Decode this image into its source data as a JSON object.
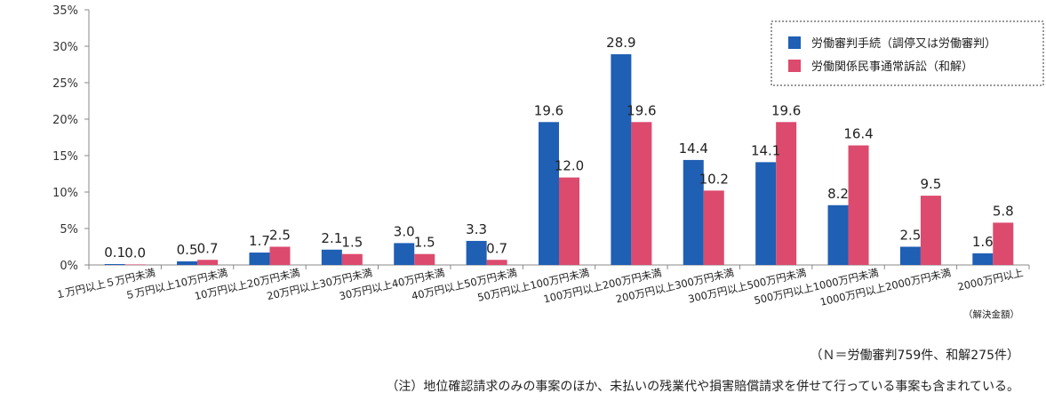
{
  "chart_data": {
    "type": "bar",
    "ylim": [
      0,
      35
    ],
    "yticks": [
      "0%",
      "5%",
      "10%",
      "15%",
      "20%",
      "25%",
      "30%",
      "35%"
    ],
    "ytick_values": [
      0,
      5,
      10,
      15,
      20,
      25,
      30,
      35
    ],
    "grid": false,
    "legend_position": "top-right",
    "x_unit_label": "（解決金額）",
    "categories": [
      "１万円以上５万円未満",
      "５万円以上10万円未満",
      "10万円以上20万円未満",
      "20万円以上30万円未満",
      "30万円以上40万円未満",
      "40万円以上50万円未満",
      "50万円以上100万円未満",
      "100万円以上200万円未満",
      "200万円以上300万円未満",
      "300万円以上500万円未満",
      "500万円以上1000万円未満",
      "1000万円以上2000万円未満",
      "2000万円以上"
    ],
    "series": [
      {
        "name": "労働審判手続（調停又は労働審判）",
        "color": "#1f5fb4",
        "values": [
          0.1,
          0.5,
          1.7,
          2.1,
          3.0,
          3.3,
          19.6,
          28.9,
          14.4,
          14.1,
          8.2,
          2.5,
          1.6
        ],
        "labels": [
          "0.1",
          "0.5",
          "1.7",
          "2.1",
          "3.0",
          "3.3",
          "19.6",
          "28.9",
          "14.4",
          "14.1",
          "8.2",
          "2.5",
          "1.6"
        ]
      },
      {
        "name": "労働関係民事通常訴訟（和解）",
        "color": "#dc4a6e",
        "values": [
          0.0,
          0.7,
          2.5,
          1.5,
          1.5,
          0.7,
          12.0,
          19.6,
          10.2,
          19.6,
          16.4,
          9.5,
          5.8
        ],
        "labels": [
          "0.0",
          "0.7",
          "2.5",
          "1.5",
          "1.5",
          "0.7",
          "12.0",
          "19.6",
          "10.2",
          "19.6",
          "16.4",
          "9.5",
          "5.8"
        ]
      }
    ]
  },
  "notes": {
    "sample_size": "（Ｎ＝労働審判759件、和解275件）",
    "footnote": "（注）地位確認請求のみの事案のほか、未払いの残業代や損害賠償請求を併せて行っている事案も含まれている。"
  }
}
